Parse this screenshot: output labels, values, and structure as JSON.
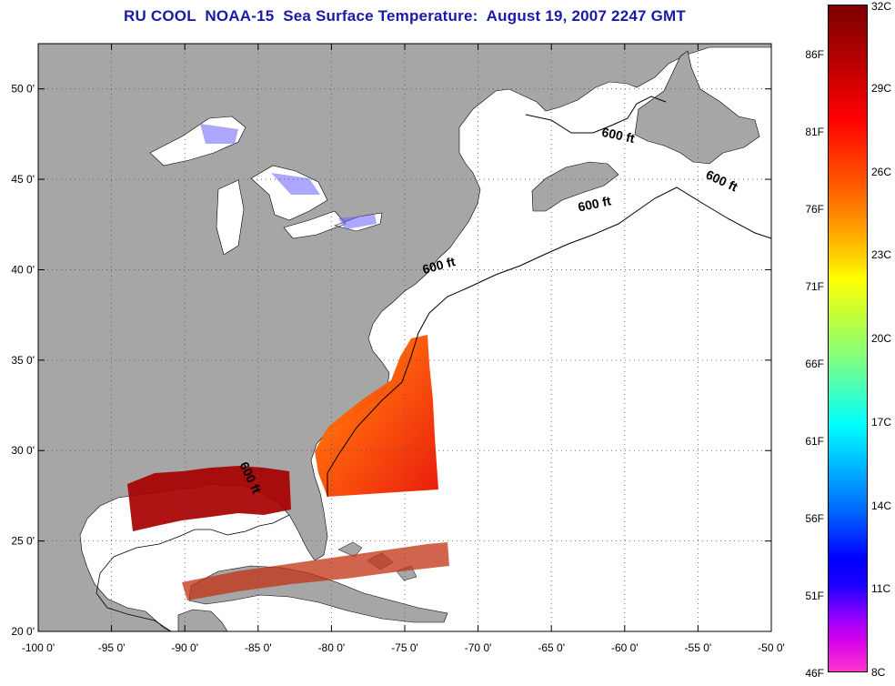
{
  "title": "RU COOL  NOAA-15  Sea Surface Temperature:  August 19, 2007 2247 GMT",
  "map": {
    "lon_range": [
      -100,
      -50
    ],
    "lat_range": [
      20,
      52.5
    ],
    "x_ticks": [
      -100,
      -95,
      -90,
      -85,
      -80,
      -75,
      -70,
      -65,
      -60,
      -55,
      -50
    ],
    "y_ticks": [
      20,
      25,
      30,
      35,
      40,
      45,
      50
    ],
    "x_tick_labels": [
      "-100 0'",
      "-95 0'",
      "-90 0'",
      "-85 0'",
      "-80 0'",
      "-75 0'",
      "-70 0'",
      "-65 0'",
      "-60 0'",
      "-55 0'",
      "-50 0'"
    ],
    "y_tick_labels": [
      "20 0'",
      "25 0'",
      "30 0'",
      "35 0'",
      "40 0'",
      "45 0'",
      "50 0'"
    ],
    "grid": "dotted",
    "land_color": "#a6a6a6",
    "ocean_color": "#ffffff",
    "contour_labels": [
      {
        "text": "600 ft",
        "lon": -60.5,
        "lat": 47.2,
        "rotate": 12
      },
      {
        "text": "600 ft",
        "lon": -53.5,
        "lat": 44.7,
        "rotate": 25
      },
      {
        "text": "600 ft",
        "lon": -62.0,
        "lat": 43.4,
        "rotate": -12
      },
      {
        "text": "600 ft",
        "lon": -72.6,
        "lat": 40.0,
        "rotate": -15
      },
      {
        "text": "600 ft",
        "lon": -85.8,
        "lat": 28.4,
        "rotate": 65
      }
    ]
  },
  "colorbar": {
    "range_c": [
      8,
      32
    ],
    "celsius_labels": [
      "32C",
      "29C",
      "26C",
      "23C",
      "20C",
      "17C",
      "14C",
      "11C",
      "8C"
    ],
    "fahrenheit_labels": [
      "86F",
      "81F",
      "76F",
      "71F",
      "66F",
      "61F",
      "56F",
      "51F",
      "46F"
    ]
  }
}
